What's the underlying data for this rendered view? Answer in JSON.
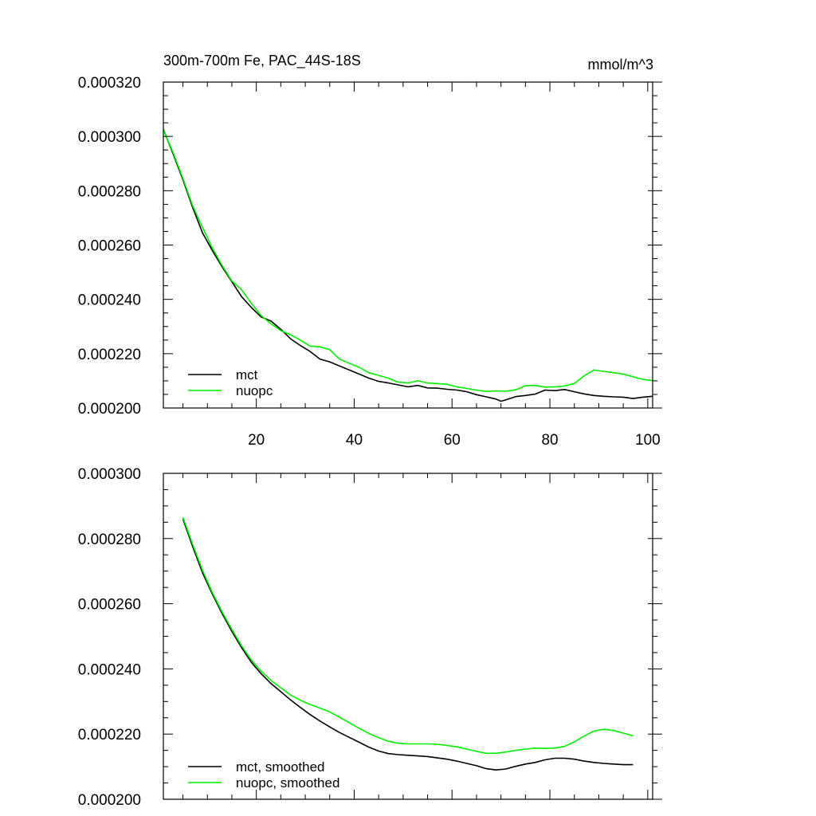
{
  "chart_data": [
    {
      "type": "line",
      "title": "300m-700m Fe, PAC_44S-18S",
      "units": "mmol/m^3",
      "xlim": [
        1,
        101
      ],
      "ylim": [
        0.0002,
        0.00032
      ],
      "xticks": [
        20,
        40,
        60,
        80,
        100
      ],
      "xtick_labels": [
        "20",
        "40",
        "60",
        "80",
        "100"
      ],
      "yticks": [
        0.0002,
        0.00022,
        0.00024,
        0.00026,
        0.00028,
        0.0003,
        0.00032
      ],
      "ytick_labels": [
        "0.000200",
        "0.000220",
        "0.000240",
        "0.000260",
        "0.000280",
        "0.000300",
        "0.000320"
      ],
      "legend_position": "bottom-left",
      "series": [
        {
          "name": "mct",
          "color": "#000000",
          "x": [
            1,
            3,
            5,
            7,
            9,
            11,
            13,
            15,
            17,
            19,
            21,
            23,
            25,
            27,
            29,
            31,
            33,
            35,
            37,
            39,
            41,
            43,
            45,
            47,
            49,
            51,
            53,
            55,
            57,
            59,
            61,
            63,
            65,
            67,
            69,
            70,
            71,
            73,
            75,
            77,
            79,
            81,
            83,
            85,
            87,
            89,
            91,
            93,
            95,
            97,
            99,
            101
          ],
          "values": [
            0.0003027,
            0.0002935,
            0.000284,
            0.0002738,
            0.0002645,
            0.000258,
            0.000252,
            0.0002465,
            0.000241,
            0.000237,
            0.0002335,
            0.000232,
            0.000229,
            0.0002255,
            0.000223,
            0.0002208,
            0.000218,
            0.000217,
            0.0002155,
            0.000214,
            0.0002125,
            0.000211,
            0.0002098,
            0.0002092,
            0.0002085,
            0.0002078,
            0.0002083,
            0.0002074,
            0.0002073,
            0.0002069,
            0.0002066,
            0.000206,
            0.0002049,
            0.0002041,
            0.0002033,
            0.0002025,
            0.000203,
            0.0002042,
            0.0002046,
            0.0002051,
            0.0002066,
            0.0002064,
            0.0002068,
            0.000206,
            0.0002052,
            0.0002046,
            0.0002043,
            0.0002041,
            0.000204,
            0.0002035,
            0.000204,
            0.0002043
          ]
        },
        {
          "name": "nuopc",
          "color": "#00ee00",
          "x": [
            1,
            3,
            5,
            7,
            9,
            11,
            13,
            15,
            17,
            19,
            21,
            23,
            25,
            27,
            29,
            31,
            33,
            35,
            37,
            39,
            41,
            43,
            45,
            47,
            49,
            51,
            53,
            55,
            57,
            59,
            61,
            63,
            65,
            67,
            69,
            71,
            73,
            75,
            77,
            79,
            81,
            83,
            85,
            87,
            89,
            91,
            93,
            95,
            97,
            99,
            101
          ],
          "values": [
            0.0003025,
            0.000294,
            0.0002845,
            0.0002745,
            0.0002665,
            0.000259,
            0.0002525,
            0.0002468,
            0.0002435,
            0.0002385,
            0.000234,
            0.000231,
            0.0002285,
            0.000227,
            0.000225,
            0.0002228,
            0.0002225,
            0.0002215,
            0.000218,
            0.0002165,
            0.000215,
            0.000213,
            0.000212,
            0.000211,
            0.0002095,
            0.0002092,
            0.00021,
            0.0002092,
            0.000209,
            0.0002087,
            0.0002078,
            0.0002072,
            0.0002066,
            0.0002061,
            0.0002063,
            0.0002062,
            0.0002067,
            0.0002082,
            0.0002083,
            0.0002077,
            0.0002078,
            0.0002081,
            0.000209,
            0.0002118,
            0.000214,
            0.0002135,
            0.000213,
            0.0002125,
            0.0002115,
            0.0002105,
            0.0002101
          ]
        }
      ]
    },
    {
      "type": "line",
      "title": "",
      "xlim": [
        1,
        101
      ],
      "ylim": [
        0.0002,
        0.0003
      ],
      "xticks": [
        20,
        40,
        60,
        80,
        100
      ],
      "xtick_labels": [],
      "yticks": [
        0.0002,
        0.00022,
        0.00024,
        0.00026,
        0.00028,
        0.0003
      ],
      "ytick_labels": [
        "0.000200",
        "0.000220",
        "0.000240",
        "0.000260",
        "0.000280",
        "0.000300"
      ],
      "legend_position": "bottom-left",
      "series": [
        {
          "name": "mct, smoothed",
          "color": "#000000",
          "x": [
            5,
            7,
            9,
            11,
            13,
            15,
            17,
            19,
            21,
            23,
            25,
            27,
            29,
            31,
            33,
            35,
            37,
            39,
            41,
            43,
            45,
            47,
            49,
            51,
            53,
            55,
            57,
            59,
            61,
            63,
            65,
            67,
            69,
            71,
            73,
            75,
            77,
            79,
            81,
            83,
            85,
            87,
            89,
            91,
            93,
            95,
            97
          ],
          "values": [
            0.000286,
            0.0002775,
            0.0002695,
            0.000263,
            0.000257,
            0.0002515,
            0.0002465,
            0.000242,
            0.0002385,
            0.0002355,
            0.000233,
            0.0002305,
            0.0002282,
            0.000226,
            0.000224,
            0.0002222,
            0.0002205,
            0.000219,
            0.0002175,
            0.000216,
            0.0002148,
            0.000214,
            0.0002137,
            0.0002135,
            0.0002133,
            0.0002131,
            0.0002127,
            0.0002123,
            0.0002117,
            0.000211,
            0.0002103,
            0.0002094,
            0.000209,
            0.0002093,
            0.0002101,
            0.0002108,
            0.0002113,
            0.0002121,
            0.0002126,
            0.0002126,
            0.0002123,
            0.0002117,
            0.0002113,
            0.000211,
            0.0002108,
            0.0002106,
            0.0002106
          ]
        },
        {
          "name": "nuopc, smoothed",
          "color": "#00ee00",
          "x": [
            5,
            7,
            9,
            11,
            13,
            15,
            17,
            19,
            21,
            23,
            25,
            27,
            29,
            31,
            33,
            35,
            37,
            39,
            41,
            43,
            45,
            47,
            49,
            51,
            53,
            55,
            57,
            59,
            61,
            63,
            65,
            67,
            69,
            71,
            73,
            75,
            77,
            79,
            81,
            83,
            85,
            87,
            89,
            91,
            93,
            95,
            97
          ],
          "values": [
            0.0002865,
            0.0002782,
            0.0002703,
            0.0002635,
            0.0002575,
            0.0002521,
            0.0002471,
            0.0002427,
            0.0002393,
            0.0002365,
            0.0002342,
            0.000232,
            0.0002304,
            0.0002291,
            0.000228,
            0.0002268,
            0.0002252,
            0.0002235,
            0.0002218,
            0.0002202,
            0.0002189,
            0.0002178,
            0.0002172,
            0.000217,
            0.000217,
            0.000217,
            0.0002169,
            0.0002165,
            0.0002161,
            0.0002154,
            0.0002147,
            0.0002141,
            0.0002141,
            0.0002145,
            0.000215,
            0.0002154,
            0.0002157,
            0.0002156,
            0.0002157,
            0.0002162,
            0.0002176,
            0.0002194,
            0.0002209,
            0.0002215,
            0.0002211,
            0.0002203,
            0.0002195
          ]
        }
      ]
    }
  ]
}
